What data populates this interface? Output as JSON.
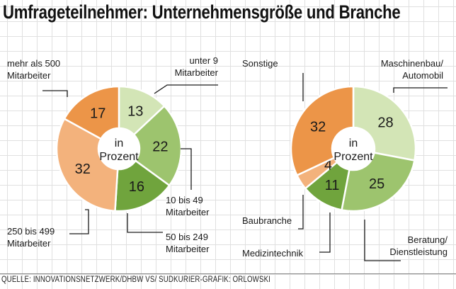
{
  "title": "Umfrageteilnehmer: Unternehmensgröße und Branche",
  "source": "QUELLE: INNOVATIONSNETZWERK/DHBW VS/ SÜDKURIER-GRAFIK: ORLOWSKI",
  "chart_data": [
    {
      "type": "pie",
      "center_label": [
        "in",
        "Prozent"
      ],
      "slices": [
        {
          "label": [
            "unter 9",
            "Mitarbeiter"
          ],
          "value": 13,
          "color": "#d3e5b6"
        },
        {
          "label": [
            "10 bis 49",
            "Mitarbeiter"
          ],
          "value": 22,
          "color": "#9dc46e"
        },
        {
          "label": [
            "50 bis 249",
            "Mitarbeiter"
          ],
          "value": 16,
          "color": "#70a43d"
        },
        {
          "label": [
            "250 bis 499",
            "Mitarbeiter"
          ],
          "value": 32,
          "color": "#f3b27c"
        },
        {
          "label": [
            "mehr als 500",
            "Mitarbeiter"
          ],
          "value": 17,
          "color": "#ec9548"
        }
      ]
    },
    {
      "type": "pie",
      "center_label": [
        "in",
        "Prozent"
      ],
      "slices": [
        {
          "label": [
            "Maschinenbau/",
            "Automobil"
          ],
          "value": 28,
          "color": "#d3e5b6"
        },
        {
          "label": [
            "Beratung/",
            "Dienstleistung"
          ],
          "value": 25,
          "color": "#9dc46e"
        },
        {
          "label": [
            "Medizintechnik"
          ],
          "value": 11,
          "color": "#70a43d"
        },
        {
          "label": [
            "Baubranche"
          ],
          "value": 4,
          "color": "#f3b27c"
        },
        {
          "label": [
            "Sonstige"
          ],
          "value": 32,
          "color": "#ec9548"
        }
      ]
    }
  ]
}
